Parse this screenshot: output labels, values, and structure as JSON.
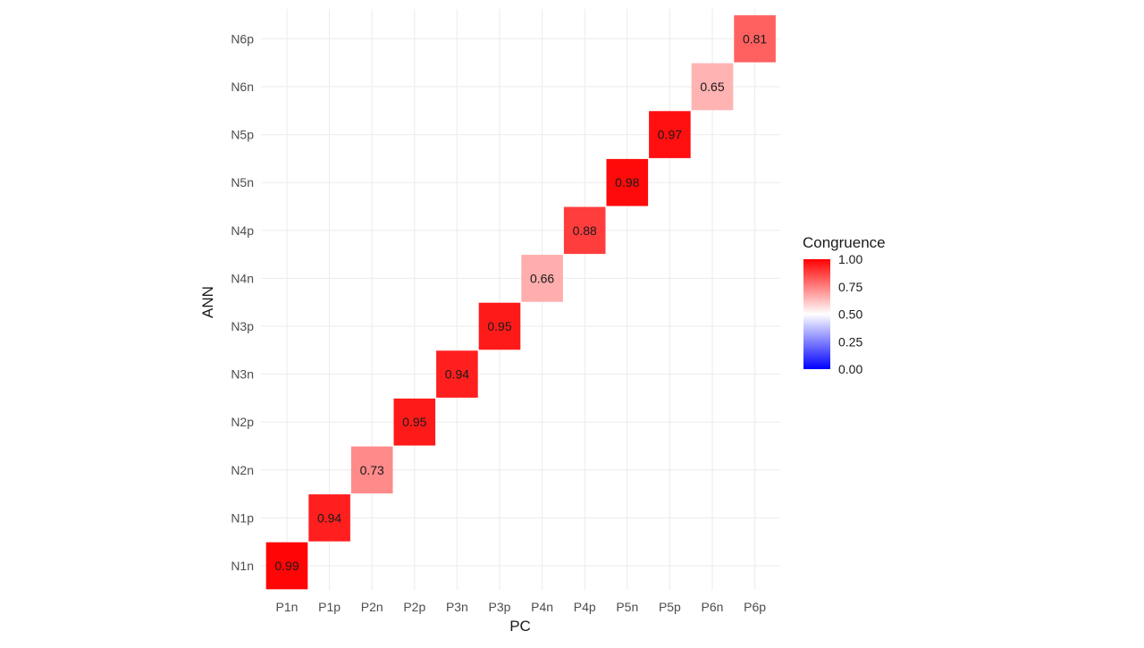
{
  "chart_data": {
    "type": "heatmap",
    "xlabel": "PC",
    "ylabel": "ANN",
    "x_categories": [
      "P1n",
      "P1p",
      "P2n",
      "P2p",
      "P3n",
      "P3p",
      "P4n",
      "P4p",
      "P5n",
      "P5p",
      "P6n",
      "P6p"
    ],
    "y_categories": [
      "N1n",
      "N1p",
      "N2n",
      "N2p",
      "N3n",
      "N3p",
      "N4n",
      "N4p",
      "N5n",
      "N5p",
      "N6n",
      "N6p"
    ],
    "cells": [
      {
        "x": "P1n",
        "y": "N1n",
        "value": 0.99,
        "label": "0.99"
      },
      {
        "x": "P1p",
        "y": "N1p",
        "value": 0.94,
        "label": "0.94"
      },
      {
        "x": "P2n",
        "y": "N2n",
        "value": 0.73,
        "label": "0.73"
      },
      {
        "x": "P2p",
        "y": "N2p",
        "value": 0.95,
        "label": "0.95"
      },
      {
        "x": "P3n",
        "y": "N3n",
        "value": 0.94,
        "label": "0.94"
      },
      {
        "x": "P3p",
        "y": "N3p",
        "value": 0.95,
        "label": "0.95"
      },
      {
        "x": "P4n",
        "y": "N4n",
        "value": 0.66,
        "label": "0.66"
      },
      {
        "x": "P4p",
        "y": "N4p",
        "value": 0.88,
        "label": "0.88"
      },
      {
        "x": "P5n",
        "y": "N5n",
        "value": 0.98,
        "label": "0.98"
      },
      {
        "x": "P5p",
        "y": "N5p",
        "value": 0.97,
        "label": "0.97"
      },
      {
        "x": "P6n",
        "y": "N6n",
        "value": 0.65,
        "label": "0.65"
      },
      {
        "x": "P6p",
        "y": "N6p",
        "value": 0.81,
        "label": "0.81"
      }
    ],
    "legend": {
      "title": "Congruence",
      "placement": "right",
      "range": [
        0,
        1
      ],
      "ticks": [
        "0.00",
        "0.25",
        "0.50",
        "0.75",
        "1.00"
      ],
      "colors": {
        "low": "#0000ff",
        "mid": "#ffffff",
        "high": "#ff0000"
      },
      "midpoint": 0.5
    },
    "grid": true
  }
}
